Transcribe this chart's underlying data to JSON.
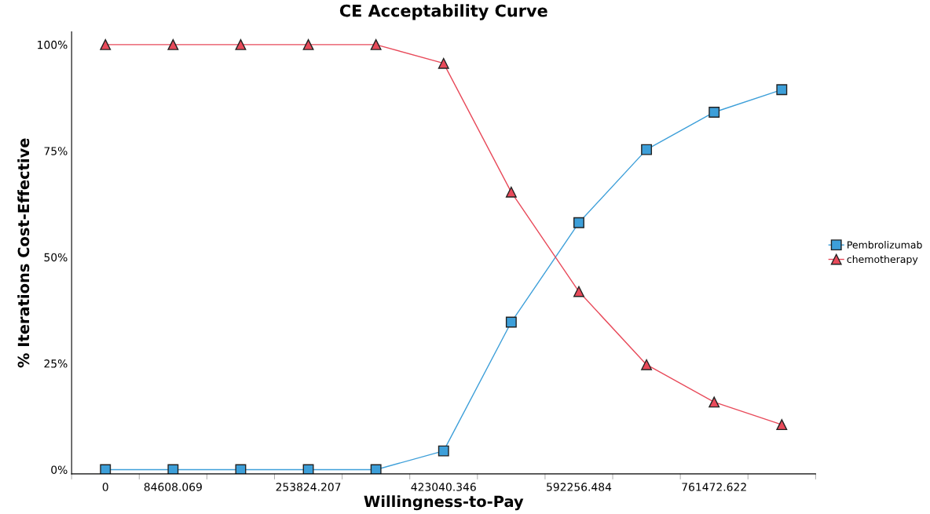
{
  "chart_data": {
    "type": "line",
    "title": "CE Acceptability Curve",
    "xlabel": "Willingness-to-Pay",
    "ylabel": "% Iterations Cost-Effective",
    "categories": [
      "0",
      "84608.069",
      null,
      "253824.207",
      null,
      "423040.346",
      null,
      "592256.484",
      null,
      "761472.622",
      null
    ],
    "series": [
      {
        "name": "Pembrolizumab",
        "color": "#3d9fd9",
        "marker": "square",
        "values": [
          0,
          0,
          0,
          0,
          0,
          4.4,
          34.7,
          58.1,
          75.3,
          84.1,
          89.4
        ]
      },
      {
        "name": "chemotherapy",
        "color": "#e84a5a",
        "marker": "triangle",
        "values": [
          100,
          100,
          100,
          100,
          100,
          95.6,
          65.3,
          41.9,
          24.7,
          15.9,
          10.6
        ]
      }
    ],
    "ylim": [
      -1,
      103
    ],
    "yticks": [
      {
        "value": 0,
        "label": "0%"
      },
      {
        "value": 25,
        "label": "25%"
      },
      {
        "value": 50,
        "label": "50%"
      },
      {
        "value": 75,
        "label": "75%"
      },
      {
        "value": 100,
        "label": "100%"
      }
    ],
    "grid": false,
    "legend": "right",
    "line_style": "solid"
  }
}
